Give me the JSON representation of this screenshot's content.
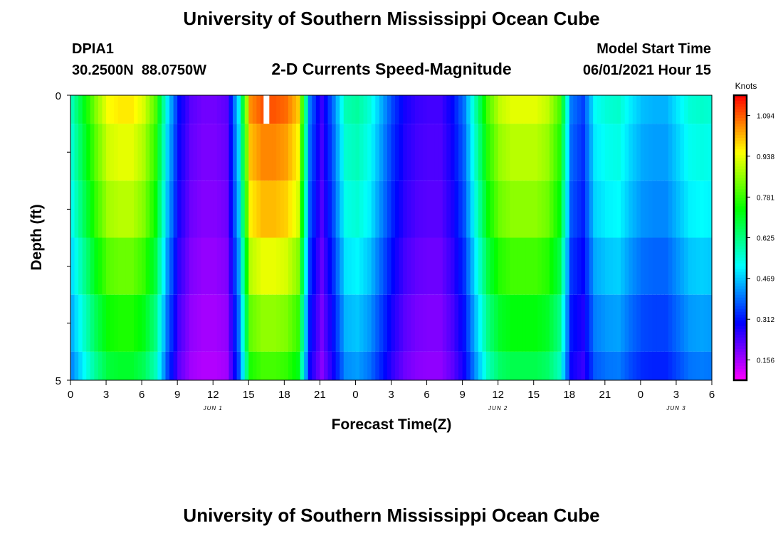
{
  "chart_data": {
    "type": "heatmap",
    "title": "University of Southern Mississippi Ocean Cube",
    "footer_title": "University of Southern Mississippi Ocean Cube",
    "station": "DPIA1",
    "coords": "30.2500N  88.0750W",
    "subtitle": "2-D Currents Speed-Magnitude",
    "model_label": "Model Start Time",
    "model_time": "06/01/2021 Hour 15",
    "xlabel": "Forecast Time(Z)",
    "ylabel": "Depth (ft)",
    "colorbar_title": "Knots",
    "x_ticks": [
      "0",
      "3",
      "6",
      "9",
      "12",
      "15",
      "18",
      "21",
      "0",
      "3",
      "6",
      "9",
      "12",
      "15",
      "18",
      "21",
      "0",
      "3",
      "6"
    ],
    "x_range_hours": [
      0,
      54
    ],
    "day_labels": [
      {
        "label": "JUN 1",
        "hour": 12
      },
      {
        "label": "JUN 2",
        "hour": 36
      },
      {
        "label": "JUN 3",
        "hour": 51
      }
    ],
    "y_ticks": [
      "0",
      "5"
    ],
    "ylim": [
      0,
      5
    ],
    "colorbar": {
      "range": [
        0.078,
        1.172
      ],
      "ticks": [
        0.156,
        0.312,
        0.469,
        0.625,
        0.781,
        0.938,
        1.094
      ],
      "tick_labels": [
        "0.156",
        "0.312",
        "0.469",
        "0.625",
        "0.781",
        "0.938",
        "1.094"
      ]
    },
    "depth_layers": [
      0.25,
      1.0,
      2.0,
      3.0,
      4.0,
      4.75
    ],
    "layer_bounds": [
      0,
      0.5,
      1.5,
      2.5,
      3.5,
      4.5,
      5
    ],
    "time_hours": [
      0,
      1,
      2,
      3,
      4,
      5,
      6,
      7,
      8,
      9,
      10,
      11,
      12,
      13,
      14,
      15,
      16,
      17,
      18,
      19,
      20,
      21,
      22,
      23,
      24,
      25,
      26,
      27,
      28,
      29,
      30,
      31,
      32,
      33,
      34,
      35,
      36,
      37,
      38,
      39,
      40,
      41,
      42,
      43,
      44,
      45,
      46,
      47,
      48,
      49,
      50,
      51,
      52,
      53,
      54
    ],
    "speed_profile_surface": [
      0.58,
      0.72,
      0.85,
      0.95,
      0.97,
      0.97,
      0.92,
      0.8,
      0.5,
      0.3,
      0.22,
      0.2,
      0.2,
      0.22,
      0.5,
      1.05,
      1.1,
      1.1,
      1.08,
      1.0,
      0.4,
      0.25,
      0.4,
      0.58,
      0.6,
      0.55,
      0.45,
      0.35,
      0.28,
      0.25,
      0.24,
      0.24,
      0.3,
      0.4,
      0.6,
      0.8,
      0.9,
      0.93,
      0.93,
      0.93,
      0.9,
      0.8,
      0.4,
      0.35,
      0.52,
      0.55,
      0.56,
      0.5,
      0.46,
      0.45,
      0.45,
      0.5,
      0.55,
      0.56,
      0.55
    ],
    "depth_factors": [
      1.0,
      0.96,
      0.92,
      0.85,
      0.78,
      0.72
    ],
    "missing_cell": {
      "hour": 16.5,
      "layer_index": 0
    }
  }
}
